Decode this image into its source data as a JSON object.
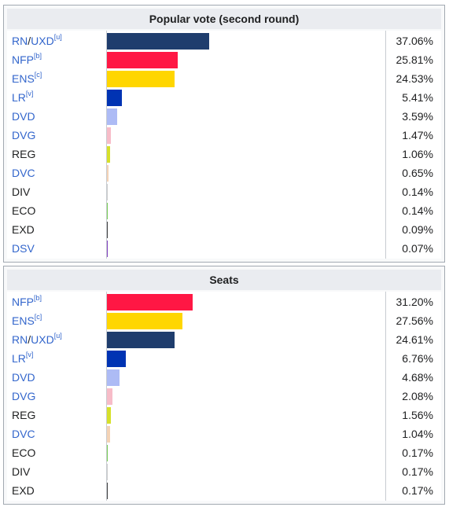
{
  "charts": [
    {
      "caption": "Popular vote (second round)",
      "rows": [
        {
          "a": "RN",
          "sep": "/",
          "b": "UXD",
          "sup": "[u]",
          "link": true,
          "value_label": "37.06%",
          "color": "#1f3d6d"
        },
        {
          "a": "NFP",
          "sep": "",
          "b": "",
          "sup": "[b]",
          "link": true,
          "value_label": "25.81%",
          "color": "#ff1744"
        },
        {
          "a": "ENS",
          "sep": "",
          "b": "",
          "sup": "[c]",
          "link": true,
          "value_label": "24.53%",
          "color": "#ffd600"
        },
        {
          "a": "LR",
          "sep": "",
          "b": "",
          "sup": "[v]",
          "link": true,
          "value_label": "5.41%",
          "color": "#0033b3"
        },
        {
          "a": "DVD",
          "sep": "",
          "b": "",
          "sup": "",
          "link": true,
          "value_label": "3.59%",
          "color": "#adbbf5"
        },
        {
          "a": "DVG",
          "sep": "",
          "b": "",
          "sup": "",
          "link": true,
          "value_label": "1.47%",
          "color": "#f7bcc8"
        },
        {
          "a": "REG",
          "sep": "",
          "b": "",
          "sup": "",
          "link": false,
          "value_label": "1.06%",
          "color": "#d6e02a"
        },
        {
          "a": "DVC",
          "sep": "",
          "b": "",
          "sup": "",
          "link": true,
          "value_label": "0.65%",
          "color": "#f4d3b6"
        },
        {
          "a": "DIV",
          "sep": "",
          "b": "",
          "sup": "",
          "link": false,
          "value_label": "0.14%",
          "color": "#cccccc"
        },
        {
          "a": "ECO",
          "sep": "",
          "b": "",
          "sup": "",
          "link": false,
          "value_label": "0.14%",
          "color": "#77cc55"
        },
        {
          "a": "EXD",
          "sep": "",
          "b": "",
          "sup": "",
          "link": false,
          "value_label": "0.09%",
          "color": "#404040"
        },
        {
          "a": "DSV",
          "sep": "",
          "b": "",
          "sup": "",
          "link": true,
          "value_label": "0.07%",
          "color": "#8040c0"
        }
      ]
    },
    {
      "caption": "Seats",
      "rows": [
        {
          "a": "NFP",
          "sep": "",
          "b": "",
          "sup": "[b]",
          "link": true,
          "value_label": "31.20%",
          "color": "#ff1744"
        },
        {
          "a": "ENS",
          "sep": "",
          "b": "",
          "sup": "[c]",
          "link": true,
          "value_label": "27.56%",
          "color": "#ffd600"
        },
        {
          "a": "RN",
          "sep": "/",
          "b": "UXD",
          "sup": "[u]",
          "link": true,
          "value_label": "24.61%",
          "color": "#1f3d6d"
        },
        {
          "a": "LR",
          "sep": "",
          "b": "",
          "sup": "[v]",
          "link": true,
          "value_label": "6.76%",
          "color": "#0033b3"
        },
        {
          "a": "DVD",
          "sep": "",
          "b": "",
          "sup": "",
          "link": true,
          "value_label": "4.68%",
          "color": "#adbbf5"
        },
        {
          "a": "DVG",
          "sep": "",
          "b": "",
          "sup": "",
          "link": true,
          "value_label": "2.08%",
          "color": "#f7bcc8"
        },
        {
          "a": "REG",
          "sep": "",
          "b": "",
          "sup": "",
          "link": false,
          "value_label": "1.56%",
          "color": "#d6e02a"
        },
        {
          "a": "DVC",
          "sep": "",
          "b": "",
          "sup": "",
          "link": true,
          "value_label": "1.04%",
          "color": "#f4d3b6"
        },
        {
          "a": "ECO",
          "sep": "",
          "b": "",
          "sup": "",
          "link": false,
          "value_label": "0.17%",
          "color": "#77cc55"
        },
        {
          "a": "DIV",
          "sep": "",
          "b": "",
          "sup": "",
          "link": false,
          "value_label": "0.17%",
          "color": "#cccccc"
        },
        {
          "a": "EXD",
          "sep": "",
          "b": "",
          "sup": "",
          "link": false,
          "value_label": "0.17%",
          "color": "#404040"
        }
      ]
    }
  ],
  "chart_data": [
    {
      "type": "bar",
      "title": "Popular vote (second round)",
      "categories": [
        "RN/UXD",
        "NFP",
        "ENS",
        "LR",
        "DVD",
        "DVG",
        "REG",
        "DVC",
        "DIV",
        "ECO",
        "EXD",
        "DSV"
      ],
      "values": [
        37.06,
        25.81,
        24.53,
        5.41,
        3.59,
        1.47,
        1.06,
        0.65,
        0.14,
        0.14,
        0.09,
        0.07
      ],
      "orientation": "horizontal",
      "xlim": [
        0,
        100
      ],
      "grid": false
    },
    {
      "type": "bar",
      "title": "Seats",
      "categories": [
        "NFP",
        "ENS",
        "RN/UXD",
        "LR",
        "DVD",
        "DVG",
        "REG",
        "DVC",
        "ECO",
        "DIV",
        "EXD"
      ],
      "values": [
        31.2,
        27.56,
        24.61,
        6.76,
        4.68,
        2.08,
        1.56,
        1.04,
        0.17,
        0.17,
        0.17
      ],
      "orientation": "horizontal",
      "xlim": [
        0,
        100
      ],
      "grid": false
    }
  ]
}
